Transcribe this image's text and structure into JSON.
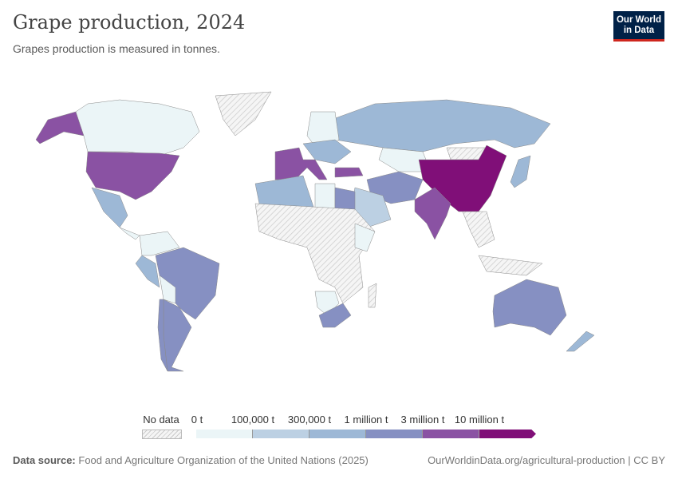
{
  "header": {
    "title": "Grape production, 2024",
    "subtitle": "Grapes production is measured in tonnes.",
    "logo_line1": "Our World",
    "logo_line2": "in Data"
  },
  "legend": {
    "no_data": "No data",
    "labels": [
      "0 t",
      "100,000 t",
      "300,000 t",
      "1 million t",
      "3 million t",
      "10 million t"
    ],
    "colors": [
      "#ebf5f7",
      "#bcd0e3",
      "#9db8d6",
      "#8690c2",
      "#8a52a3",
      "#800f78"
    ]
  },
  "footer": {
    "source_label": "Data source:",
    "source_text": "Food and Agriculture Organization of the United Nations (2025)",
    "url_text": "OurWorldinData.org/agricultural-production | CC BY"
  }
}
